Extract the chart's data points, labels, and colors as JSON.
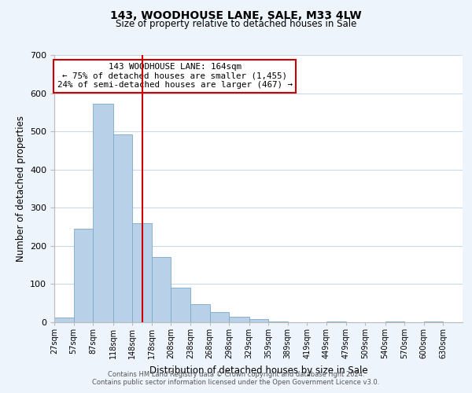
{
  "title1": "143, WOODHOUSE LANE, SALE, M33 4LW",
  "title2": "Size of property relative to detached houses in Sale",
  "xlabel": "Distribution of detached houses by size in Sale",
  "ylabel": "Number of detached properties",
  "bar_left_edges": [
    27,
    57,
    87,
    118,
    148,
    178,
    208,
    238,
    268,
    298,
    329,
    359,
    389,
    419,
    449,
    479,
    509,
    540,
    570,
    600
  ],
  "bar_heights": [
    12,
    244,
    573,
    492,
    260,
    170,
    90,
    48,
    27,
    15,
    8,
    2,
    0,
    0,
    3,
    0,
    0,
    2,
    0,
    2
  ],
  "bar_widths": [
    30,
    30,
    31,
    30,
    30,
    30,
    30,
    30,
    30,
    31,
    30,
    30,
    30,
    30,
    30,
    30,
    31,
    30,
    30,
    30
  ],
  "tick_labels": [
    "27sqm",
    "57sqm",
    "87sqm",
    "118sqm",
    "148sqm",
    "178sqm",
    "208sqm",
    "238sqm",
    "268sqm",
    "298sqm",
    "329sqm",
    "359sqm",
    "389sqm",
    "419sqm",
    "449sqm",
    "479sqm",
    "509sqm",
    "540sqm",
    "570sqm",
    "600sqm",
    "630sqm"
  ],
  "tick_positions": [
    27,
    57,
    87,
    118,
    148,
    178,
    208,
    238,
    268,
    298,
    329,
    359,
    389,
    419,
    449,
    479,
    509,
    540,
    570,
    600,
    630
  ],
  "bar_color": "#b8d0e8",
  "bar_edge_color": "#7aaac8",
  "vline_x": 164,
  "vline_color": "#cc0000",
  "ylim": [
    0,
    700
  ],
  "yticks": [
    0,
    100,
    200,
    300,
    400,
    500,
    600,
    700
  ],
  "annotation_box_text": "143 WOODHOUSE LANE: 164sqm\n← 75% of detached houses are smaller (1,455)\n24% of semi-detached houses are larger (467) →",
  "footer1": "Contains HM Land Registry data © Crown copyright and database right 2024.",
  "footer2": "Contains public sector information licensed under the Open Government Licence v3.0.",
  "bg_color": "#eef4fb",
  "plot_bg_color": "#ffffff",
  "grid_color": "#c8d8e8",
  "xlim_left": 27,
  "xlim_right": 660
}
